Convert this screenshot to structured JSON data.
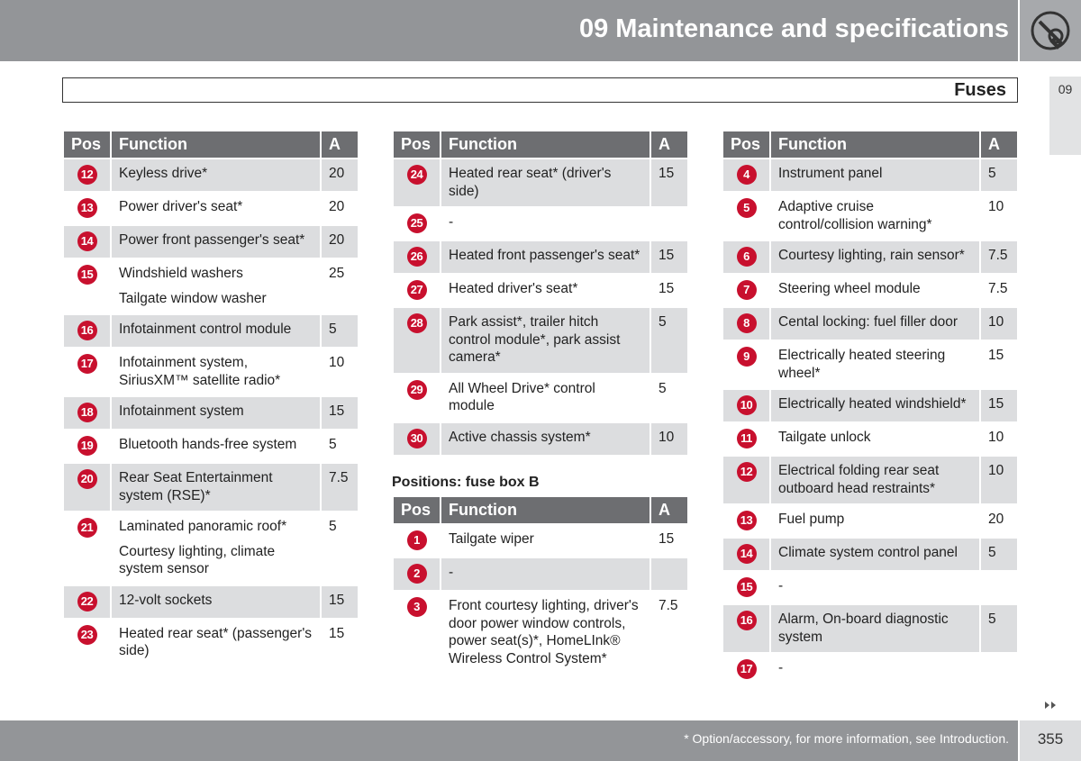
{
  "header": {
    "title": "09 Maintenance and specifications"
  },
  "tab": "09",
  "section": "Fuses",
  "tables": [
    {
      "columns": [
        "Pos",
        "Function",
        "A"
      ],
      "rows": [
        {
          "pos": 12,
          "function": [
            "Keyless drive*"
          ],
          "amps": 20
        },
        {
          "pos": 13,
          "function": [
            "Power driver's seat*"
          ],
          "amps": 20
        },
        {
          "pos": 14,
          "function": [
            "Power front passenger's seat*"
          ],
          "amps": 20
        },
        {
          "pos": 15,
          "function": [
            "Windshield washers",
            "Tailgate window washer"
          ],
          "amps": 25
        },
        {
          "pos": 16,
          "function": [
            "Infotainment control module"
          ],
          "amps": 5
        },
        {
          "pos": 17,
          "function": [
            "Infotainment system, SiriusXM™ satellite radio*"
          ],
          "amps": 10
        },
        {
          "pos": 18,
          "function": [
            "Infotainment system"
          ],
          "amps": 15
        },
        {
          "pos": 19,
          "function": [
            "Bluetooth hands-free system"
          ],
          "amps": 5
        },
        {
          "pos": 20,
          "function": [
            "Rear Seat Entertainment system (RSE)*"
          ],
          "amps": 7.5
        },
        {
          "pos": 21,
          "function": [
            "Laminated panoramic roof*",
            "Courtesy lighting, climate system sensor"
          ],
          "amps": 5
        },
        {
          "pos": 22,
          "function": [
            "12-volt sockets"
          ],
          "amps": 15
        },
        {
          "pos": 23,
          "function": [
            "Heated rear seat* (passenger's side)"
          ],
          "amps": 15
        }
      ]
    },
    {
      "columns": [
        "Pos",
        "Function",
        "A"
      ],
      "rows": [
        {
          "pos": 24,
          "function": [
            "Heated rear seat* (driver's side)"
          ],
          "amps": 15
        },
        {
          "pos": 25,
          "function": [
            "-"
          ],
          "amps": null
        },
        {
          "pos": 26,
          "function": [
            "Heated front passenger's seat*"
          ],
          "amps": 15
        },
        {
          "pos": 27,
          "function": [
            "Heated driver's seat*"
          ],
          "amps": 15
        },
        {
          "pos": 28,
          "function": [
            "Park assist*, trailer hitch control module*, park assist camera*"
          ],
          "amps": 5
        },
        {
          "pos": 29,
          "function": [
            "All Wheel Drive* control module"
          ],
          "amps": 5
        },
        {
          "pos": 30,
          "function": [
            "Active chassis system*"
          ],
          "amps": 10
        }
      ]
    },
    {
      "heading": "Positions: fuse box B",
      "columns": [
        "Pos",
        "Function",
        "A"
      ],
      "rows": [
        {
          "pos": 1,
          "function": [
            "Tailgate wiper"
          ],
          "amps": 15
        },
        {
          "pos": 2,
          "function": [
            "-"
          ],
          "amps": null
        },
        {
          "pos": 3,
          "function": [
            "Front courtesy lighting, driver's door power window controls, power seat(s)*, HomeLInk® Wireless Control System*"
          ],
          "amps": 7.5
        }
      ]
    },
    {
      "columns": [
        "Pos",
        "Function",
        "A"
      ],
      "rows": [
        {
          "pos": 4,
          "function": [
            "Instrument panel"
          ],
          "amps": 5
        },
        {
          "pos": 5,
          "function": [
            "Adaptive cruise control/collision warning*"
          ],
          "amps": 10
        },
        {
          "pos": 6,
          "function": [
            "Courtesy lighting, rain sensor*"
          ],
          "amps": 7.5
        },
        {
          "pos": 7,
          "function": [
            "Steering wheel module"
          ],
          "amps": 7.5
        },
        {
          "pos": 8,
          "function": [
            "Cental locking: fuel filler door"
          ],
          "amps": 10
        },
        {
          "pos": 9,
          "function": [
            "Electrically heated steering wheel*"
          ],
          "amps": 15
        },
        {
          "pos": 10,
          "function": [
            "Electrically heated windshield*"
          ],
          "amps": 15
        },
        {
          "pos": 11,
          "function": [
            "Tailgate unlock"
          ],
          "amps": 10
        },
        {
          "pos": 12,
          "function": [
            "Electrical folding rear seat outboard head restraints*"
          ],
          "amps": 10
        },
        {
          "pos": 13,
          "function": [
            "Fuel pump"
          ],
          "amps": 20
        },
        {
          "pos": 14,
          "function": [
            "Climate system control panel"
          ],
          "amps": 5
        },
        {
          "pos": 15,
          "function": [
            "-"
          ],
          "amps": null
        },
        {
          "pos": 16,
          "function": [
            "Alarm, On-board diagnostic system"
          ],
          "amps": 5
        },
        {
          "pos": 17,
          "function": [
            "-"
          ],
          "amps": null
        }
      ]
    }
  ],
  "footer": {
    "note": "* Option/accessory, for more information, see Introduction.",
    "page": 355
  }
}
